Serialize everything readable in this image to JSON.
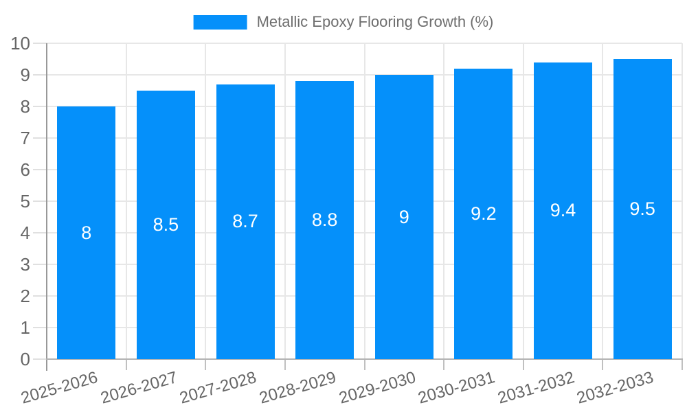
{
  "chart_data": {
    "type": "bar",
    "legend": "Metallic Epoxy Flooring Growth (%)",
    "legend_position": "top",
    "categories": [
      "2025-2026",
      "2026-2027",
      "2027-2028",
      "2028-2029",
      "2029-2030",
      "2030-2031",
      "2031-2032",
      "2032-2033"
    ],
    "values": [
      8,
      8.5,
      8.7,
      8.8,
      9,
      9.2,
      9.4,
      9.5
    ],
    "value_labels": [
      "8",
      "8.5",
      "8.7",
      "8.8",
      "9",
      "9.2",
      "9.4",
      "9.5"
    ],
    "xlabel": "",
    "ylabel": "",
    "ylim": [
      0,
      10
    ],
    "y_ticks": [
      0,
      1,
      2,
      3,
      4,
      5,
      6,
      7,
      8,
      9,
      10
    ],
    "grid": true,
    "bar_color": "#0590fa",
    "bar_value_label_color": "#ffffff",
    "axis_text_color": "#666666",
    "gridline_color": "#e7e7e7"
  }
}
